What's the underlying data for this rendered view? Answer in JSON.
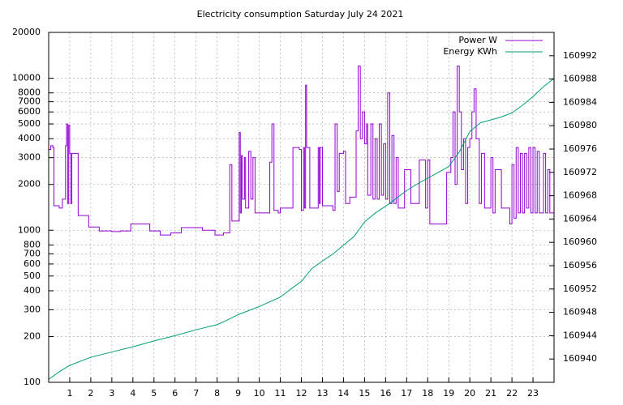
{
  "chart_data": {
    "type": "line",
    "title": "Electricity consumption Saturday July 24 2021",
    "xlim": [
      0,
      24
    ],
    "xticks": [
      1,
      2,
      3,
      4,
      5,
      6,
      7,
      8,
      9,
      10,
      11,
      12,
      13,
      14,
      15,
      16,
      17,
      18,
      19,
      20,
      21,
      22,
      23
    ],
    "ylim": [
      100,
      20000
    ],
    "log_y": true,
    "yticks": [
      100,
      200,
      300,
      400,
      500,
      600,
      700,
      800,
      1000,
      2000,
      3000,
      4000,
      5000,
      6000,
      7000,
      8000,
      10000,
      20000
    ],
    "y2lim": [
      160936,
      160996
    ],
    "y2ticks": [
      160940,
      160944,
      160948,
      160952,
      160956,
      160960,
      160964,
      160968,
      160972,
      160976,
      160980,
      160984,
      160988,
      160992
    ],
    "grid": true,
    "legend": "top-right",
    "series": [
      {
        "name": "Power W",
        "color": "#9400d3",
        "step": true,
        "x": [
          0,
          0.1,
          0.2,
          0.25,
          0.5,
          0.65,
          0.8,
          0.85,
          0.9,
          0.95,
          1.0,
          1.05,
          1.1,
          1.4,
          1.9,
          2.4,
          3.0,
          3.4,
          3.9,
          4.8,
          5.3,
          5.8,
          6.3,
          7.3,
          7.9,
          8.3,
          8.6,
          8.7,
          9.05,
          9.1,
          9.15,
          9.2,
          9.3,
          9.35,
          9.5,
          9.6,
          9.7,
          9.8,
          10.5,
          10.6,
          10.7,
          10.9,
          11.0,
          11.6,
          11.9,
          12.0,
          12.1,
          12.15,
          12.2,
          12.25,
          12.4,
          12.8,
          12.85,
          12.9,
          13.0,
          13.5,
          13.6,
          13.7,
          13.8,
          14.0,
          14.1,
          14.3,
          14.6,
          14.7,
          14.8,
          14.9,
          15.0,
          15.1,
          15.15,
          15.3,
          15.4,
          15.5,
          15.6,
          15.7,
          15.8,
          15.9,
          16.0,
          16.1,
          16.2,
          16.3,
          16.4,
          16.5,
          16.6,
          16.9,
          17.2,
          17.6,
          17.9,
          18.0,
          18.1,
          18.6,
          18.9,
          19.1,
          19.2,
          19.3,
          19.4,
          19.5,
          19.6,
          19.7,
          19.8,
          19.9,
          20.0,
          20.1,
          20.2,
          20.3,
          20.45,
          20.55,
          20.7,
          21.0,
          21.1,
          21.2,
          21.5,
          21.9,
          22.0,
          22.1,
          22.2,
          22.3,
          22.4,
          22.5,
          22.6,
          22.7,
          22.8,
          22.9,
          23.0,
          23.1,
          23.2,
          23.3,
          23.5,
          23.6,
          23.7,
          23.8,
          24
        ],
        "values": [
          3400,
          3600,
          3500,
          1450,
          1400,
          1600,
          3600,
          5000,
          1500,
          4900,
          3200,
          1500,
          3200,
          1250,
          1050,
          990,
          980,
          990,
          1100,
          990,
          930,
          960,
          1040,
          1000,
          930,
          960,
          2700,
          1150,
          4400,
          1300,
          3100,
          1600,
          3000,
          1400,
          3300,
          1600,
          3000,
          1300,
          2800,
          5000,
          1350,
          1300,
          1400,
          3500,
          3400,
          1350,
          3500,
          1400,
          9000,
          3500,
          1400,
          3500,
          1500,
          3500,
          1450,
          1350,
          5000,
          1800,
          3200,
          3300,
          1500,
          1650,
          4500,
          12000,
          4000,
          6000,
          3700,
          5000,
          1700,
          5000,
          1600,
          4000,
          1600,
          5000,
          1700,
          3700,
          1600,
          8000,
          1500,
          4200,
          1500,
          3000,
          1400,
          2500,
          1500,
          2900,
          1400,
          2900,
          1100,
          1100,
          2400,
          3000,
          6000,
          2000,
          12000,
          6000,
          2500,
          4000,
          1500,
          3500,
          4000,
          6000,
          8500,
          4000,
          1500,
          3200,
          1400,
          3000,
          1300,
          2500,
          1400,
          1100,
          2700,
          1200,
          3500,
          1300,
          3200,
          1300,
          3200,
          1400,
          3500,
          1300,
          3500,
          1300,
          3300,
          1300,
          3200,
          1300,
          2500,
          1300,
          1300
        ]
      },
      {
        "name": "Energy KWh",
        "color": "#009e73",
        "axis": "y2",
        "x": [
          0,
          0.5,
          1,
          2,
          3,
          4,
          5,
          6,
          7,
          8,
          8.5,
          9,
          10,
          11,
          11.5,
          12,
          12.5,
          13,
          13.5,
          14,
          14.5,
          15,
          15.5,
          16,
          16.5,
          17,
          17.5,
          18,
          18.5,
          19,
          19.5,
          20,
          20.5,
          21,
          21.5,
          22,
          22.5,
          23,
          23.5,
          24
        ],
        "values": [
          160936.5,
          160937.8,
          160938.9,
          160940.3,
          160941.2,
          160942.1,
          160943.1,
          160944.0,
          160945.0,
          160945.9,
          160946.7,
          160947.6,
          160949.0,
          160950.6,
          160952.0,
          160953.3,
          160955.5,
          160956.8,
          160958.0,
          160959.5,
          160961.0,
          160963.5,
          160965.0,
          160966.2,
          160967.5,
          160968.9,
          160970.0,
          160971.0,
          160972.0,
          160973.0,
          160975.5,
          160979.0,
          160980.5,
          160981.0,
          160981.5,
          160982.2,
          160983.5,
          160985.0,
          160986.7,
          160988.1
        ]
      }
    ]
  }
}
